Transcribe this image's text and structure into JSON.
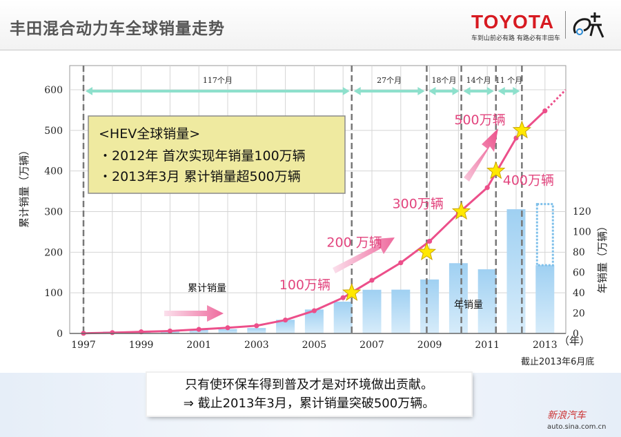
{
  "page": {
    "title": "丰田混合动力车全球销量走势",
    "brand": "TOYOTA",
    "brand_slogan": "车到山前必有路  有路必有丰田车",
    "watermark_logo": "新浪汽车",
    "watermark_url": "auto.sina.com.cn"
  },
  "info_box": {
    "heading": "<HEV全球销量>",
    "line1": "・2012年  首次实现年销量100万辆",
    "line2": "・2013年3月  累计销量超500万辆"
  },
  "message": {
    "line1": "只有使环保车得到普及才是对环境做出贡献。",
    "line2": "⇒  截止2013年3月，累计销量突破500万辆。"
  },
  "chart_data": {
    "type": "bar",
    "title": "丰田混合动力车全球销量走势",
    "ylabel": "累计销量（万辆）",
    "y2label": "年销量（万辆）",
    "xunit": "（年）",
    "note": "截止2013年6月底",
    "ylim": [
      0,
      600
    ],
    "yticks": [
      0,
      100,
      200,
      300,
      400,
      500,
      600
    ],
    "y2lim": [
      0,
      120
    ],
    "y2ticks": [
      0,
      20,
      40,
      60,
      80,
      100,
      120
    ],
    "x": [
      1997,
      1998,
      1999,
      2000,
      2001,
      2002,
      2003,
      2004,
      2005,
      2006,
      2007,
      2008,
      2009,
      2010,
      2011,
      2012,
      2013
    ],
    "xtick_labels": [
      "1997",
      "1999",
      "2001",
      "2003",
      "2005",
      "2007",
      "2009",
      "2011",
      "2013"
    ],
    "series": [
      {
        "name": "年销量",
        "axis": "right",
        "color": "#a8d4f2",
        "values": [
          0.3,
          1.8,
          1.5,
          1.9,
          3.7,
          4.2,
          5.3,
          13.4,
          23.5,
          31.2,
          42.9,
          43.0,
          53.0,
          69.0,
          63.0,
          122.0,
          67.0
        ],
        "projection": {
          "x": 2013,
          "value": 127
        }
      },
      {
        "name": "累计销量",
        "axis": "left",
        "color": "#ec4f8a",
        "values": [
          0.3,
          2,
          4,
          6,
          10,
          14,
          19,
          33,
          56,
          88,
          131,
          174,
          227,
          296,
          359,
          481,
          548
        ]
      }
    ],
    "milestones": [
      {
        "x": 2006.3,
        "y": 100,
        "label": "100万辆"
      },
      {
        "x": 2008.9,
        "y": 200,
        "label": "200 万辆"
      },
      {
        "x": 2010.1,
        "y": 300,
        "label": "300万辆"
      },
      {
        "x": 2011.3,
        "y": 400,
        "label": "400万辆"
      },
      {
        "x": 2012.2,
        "y": 500,
        "label": "500万辆"
      }
    ],
    "periods": [
      {
        "from": 1997,
        "to": 2006.3,
        "label": "117个月"
      },
      {
        "from": 2006.3,
        "to": 2008.9,
        "label": "27个月"
      },
      {
        "from": 2008.9,
        "to": 2010.1,
        "label": "18个月"
      },
      {
        "from": 2010.1,
        "to": 2011.3,
        "label": "14个月"
      },
      {
        "from": 2011.3,
        "to": 2012.2,
        "label": "11 个月"
      }
    ],
    "series_labels": {
      "cumulative": "累计销量",
      "annual": "年销量"
    }
  }
}
